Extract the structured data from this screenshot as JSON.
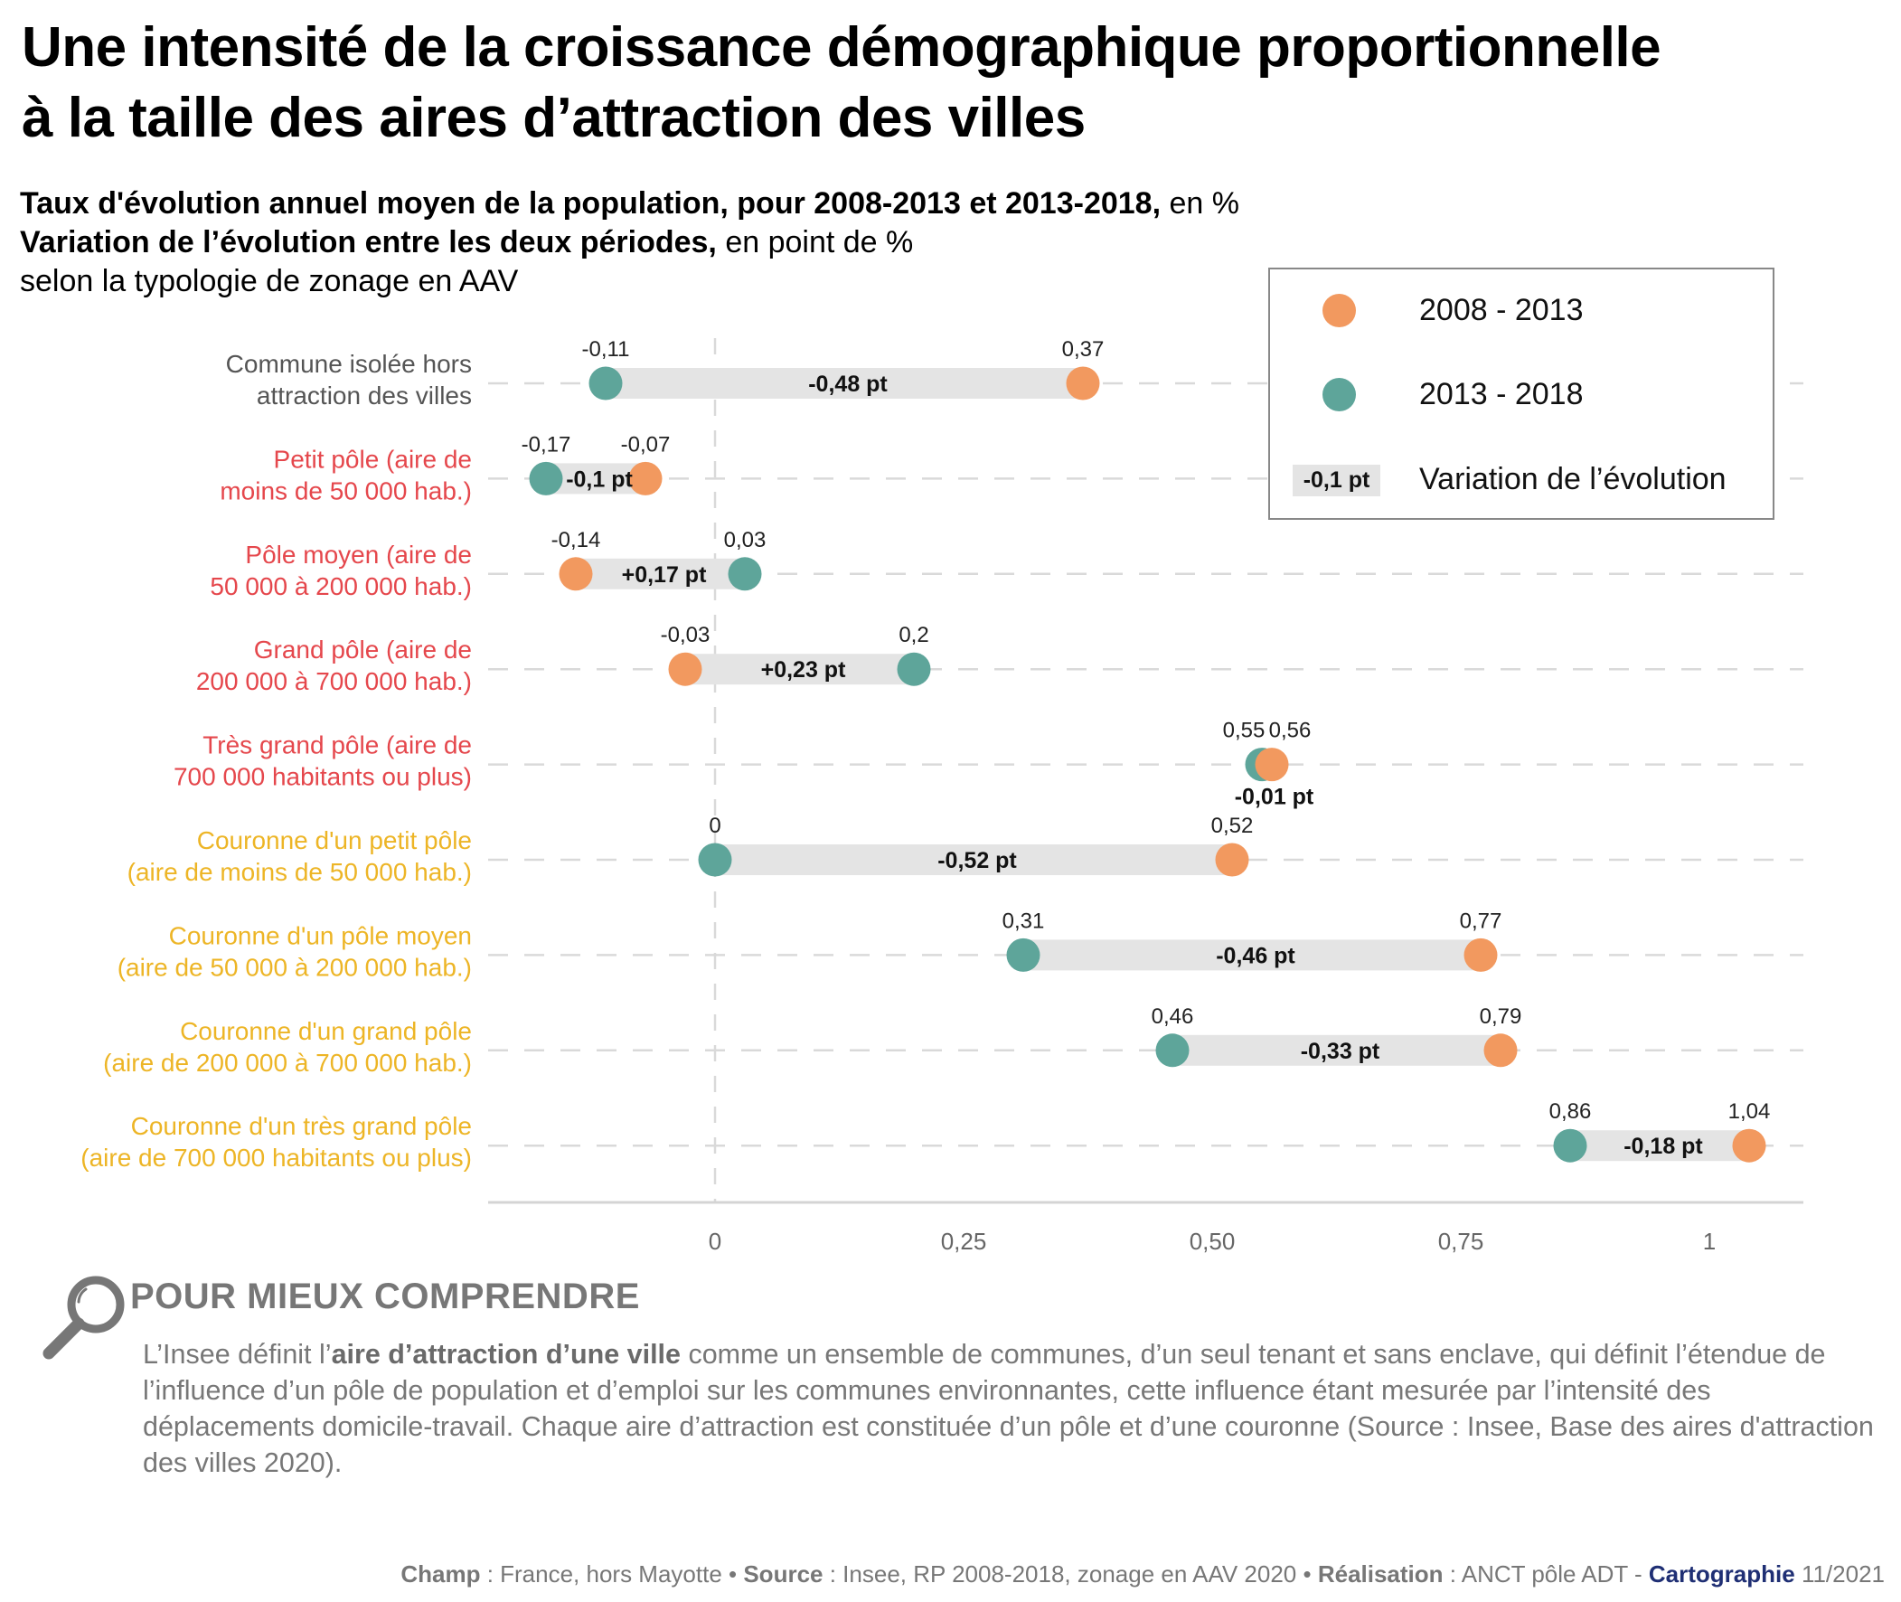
{
  "title": {
    "line1": "Une intensité de la croissance démographique proportionnelle",
    "line2": "à la taille des aires d’attraction des villes"
  },
  "subtitle": {
    "line1_bold": "Taux d'évolution annuel moyen de la population, pour 2008-2013 et 2013-2018,",
    "line1_rest": " en %",
    "line2_bold": "Variation de l’évolution entre les deux périodes,",
    "line2_rest": " en point de %",
    "line3": "selon la typologie de zonage en AAV"
  },
  "colors": {
    "period_2008_2013": "#f2995f",
    "period_2013_2018": "#5ea59a",
    "variation_bar": "#e4e4e4",
    "label_gray": "#555555",
    "label_red": "#e5474c",
    "label_yellow": "#edb526",
    "gridline": "#d9d9d9"
  },
  "legend": {
    "items": [
      {
        "label": "2008 - 2013",
        "type": "dot",
        "series": "2008-2013"
      },
      {
        "label": "2013 - 2018",
        "type": "dot",
        "series": "2013-2018"
      },
      {
        "label": "Variation de l’évolution",
        "type": "chip",
        "chip_text": "-0,1 pt"
      }
    ]
  },
  "chart_data": {
    "type": "dumbbell",
    "title": "Taux d'évolution annuel moyen de la population, pour 2008-2013 et 2013-2018, en %",
    "xlabel": "",
    "ylabel": "",
    "xlim": [
      -0.225,
      1.1
    ],
    "xticks": [
      0,
      0.25,
      0.5,
      0.75,
      1
    ],
    "xtick_labels": [
      "0",
      "0,25",
      "0,50",
      "0,75",
      "1"
    ],
    "grid": "horizontal dashed per category; dashed vertical at 0",
    "legend_position": "top-right",
    "categories": [
      {
        "label_lines": [
          "Commune isolée hors",
          "attraction des villes"
        ],
        "color_group": "gray"
      },
      {
        "label_lines": [
          "Petit pôle (aire de",
          "moins de 50 000 hab.)"
        ],
        "color_group": "red"
      },
      {
        "label_lines": [
          "Pôle moyen (aire de",
          "50 000 à 200 000 hab.)"
        ],
        "color_group": "red"
      },
      {
        "label_lines": [
          "Grand pôle (aire de",
          "200 000 à 700 000 hab.)"
        ],
        "color_group": "red"
      },
      {
        "label_lines": [
          "Très grand pôle (aire de",
          "700 000 habitants ou plus)"
        ],
        "color_group": "red"
      },
      {
        "label_lines": [
          "Couronne d'un petit pôle",
          "(aire de moins de 50 000 hab.)"
        ],
        "color_group": "yellow"
      },
      {
        "label_lines": [
          "Couronne d'un pôle moyen",
          "(aire de 50 000 à 200 000 hab.)"
        ],
        "color_group": "yellow"
      },
      {
        "label_lines": [
          "Couronne d'un grand pôle",
          "(aire de 200 000 à 700 000 hab.)"
        ],
        "color_group": "yellow"
      },
      {
        "label_lines": [
          "Couronne d'un très grand pôle",
          "(aire de 700 000 habitants ou plus)"
        ],
        "color_group": "yellow"
      }
    ],
    "series": [
      {
        "name": "2008 - 2013",
        "values": [
          0.37,
          -0.07,
          -0.14,
          -0.03,
          0.56,
          0.52,
          0.77,
          0.79,
          1.04
        ],
        "labels": [
          "0,37",
          "-0,07",
          "-0,14",
          "-0,03",
          "0,56",
          "0,52",
          "0,77",
          "0,79",
          "1,04"
        ]
      },
      {
        "name": "2013 - 2018",
        "values": [
          -0.11,
          -0.17,
          0.03,
          0.2,
          0.55,
          0,
          0.31,
          0.46,
          0.86
        ],
        "labels": [
          "-0,11",
          "-0,17",
          "0,03",
          "0,2",
          "0,55",
          "0",
          "0,31",
          "0,46",
          "0,86"
        ]
      }
    ],
    "variation": {
      "name": "Variation de l’évolution",
      "values": [
        -0.48,
        -0.1,
        0.17,
        0.23,
        -0.01,
        -0.52,
        -0.46,
        -0.33,
        -0.18
      ],
      "labels": [
        "-0,48 pt",
        "-0,1 pt",
        "+0,17 pt",
        "+0,23 pt",
        "-0,01 pt",
        "-0,52 pt",
        "-0,46 pt",
        "-0,33 pt",
        "-0,18 pt"
      ]
    }
  },
  "understand": {
    "heading": "POUR MIEUX COMPRENDRE",
    "text_before": "L’Insee définit l’",
    "text_bold": "aire d’attraction d’une ville",
    "text_after": " comme un ensemble de communes, d’un seul tenant et sans enclave, qui définit l’étendue de l’influence d’un pôle de population et d’emploi sur les communes environnantes, cette influence étant mesurée par l’intensité des déplacements domicile-travail. Chaque aire d’attraction est constituée d’un pôle et d’une couronne (Source : Insee, Base des aires d'attraction des villes 2020)."
  },
  "footer": {
    "champ_label": "Champ",
    "champ_text": " : France, hors Mayotte • ",
    "source_label": "Source",
    "source_text": " : Insee, RP 2008-2018,  zonage en AAV 2020 • ",
    "realisation_label": "Réalisation",
    "realisation_text": " : ANCT pôle ADT - ",
    "carto_label": "Cartographie",
    "date": " 11/2021"
  }
}
